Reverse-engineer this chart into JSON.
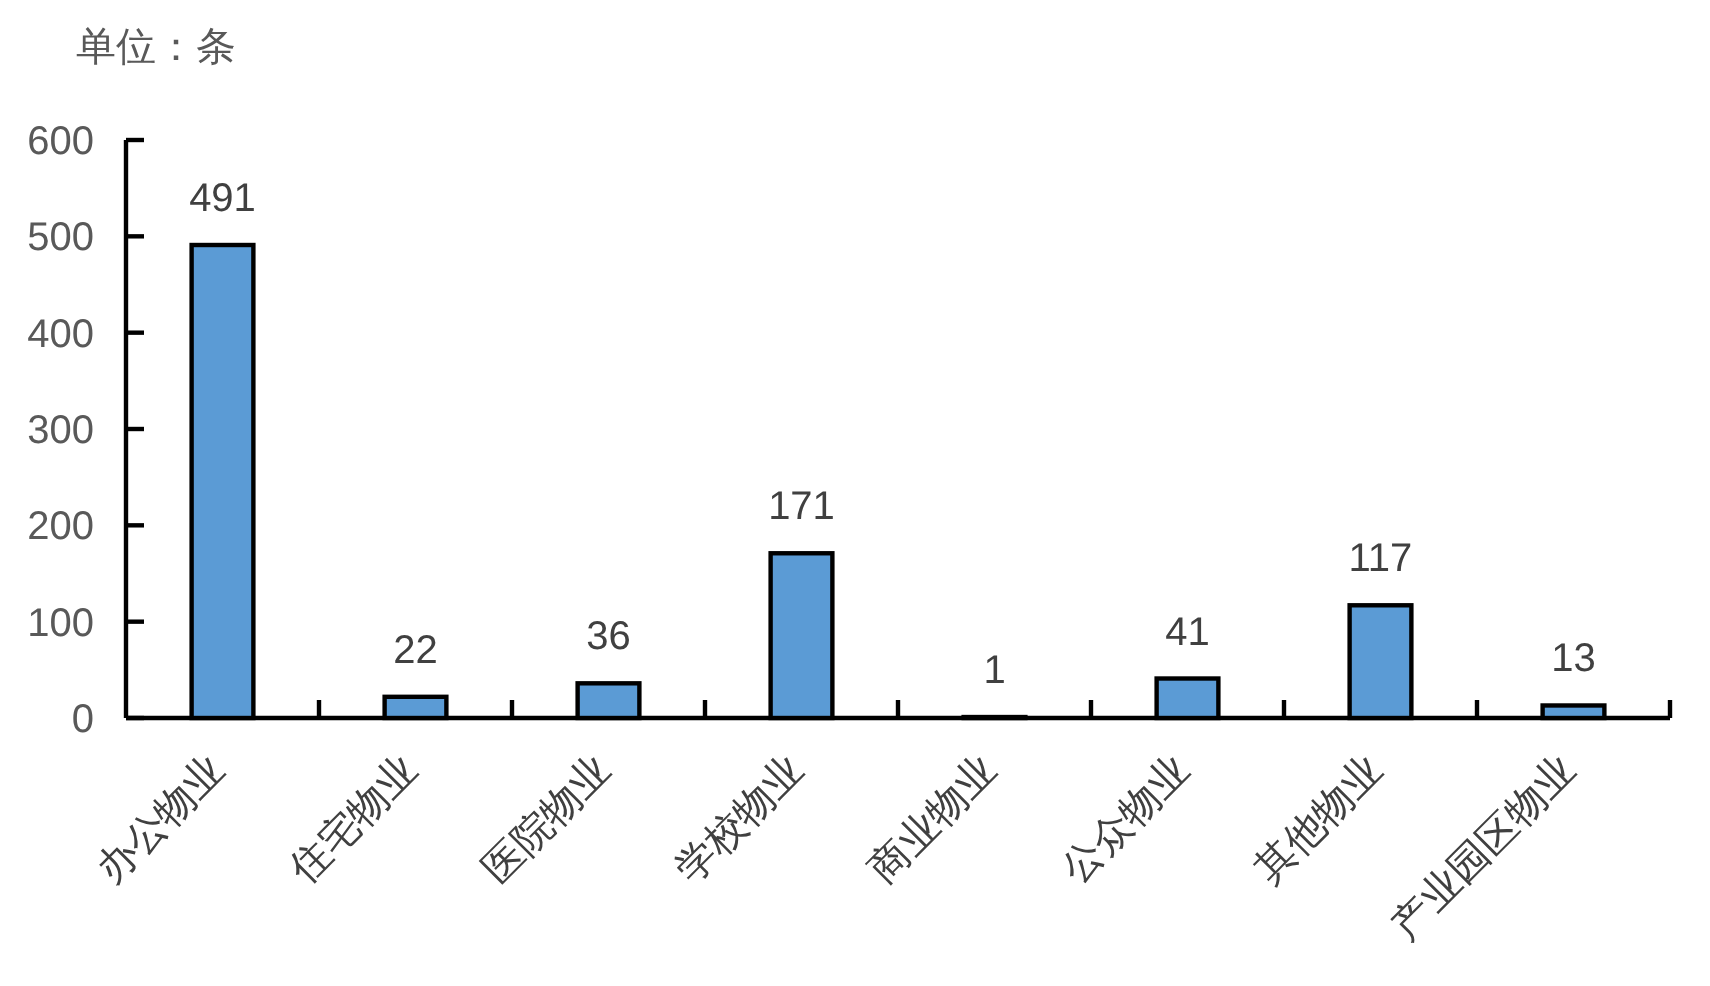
{
  "chart_data": {
    "type": "bar",
    "ylabel": "单位：条",
    "categories": [
      "办公物业",
      "住宅物业",
      "医院物业",
      "学校物业",
      "商业物业",
      "公众物业",
      "其他物业",
      "产业园区物业"
    ],
    "values": [
      491,
      22,
      36,
      171,
      1,
      41,
      117,
      13
    ],
    "color": "#5b9bd5",
    "ylim": [
      0,
      600
    ],
    "yticks": [
      0,
      100,
      200,
      300,
      400,
      500,
      600
    ],
    "data_labels": true
  }
}
